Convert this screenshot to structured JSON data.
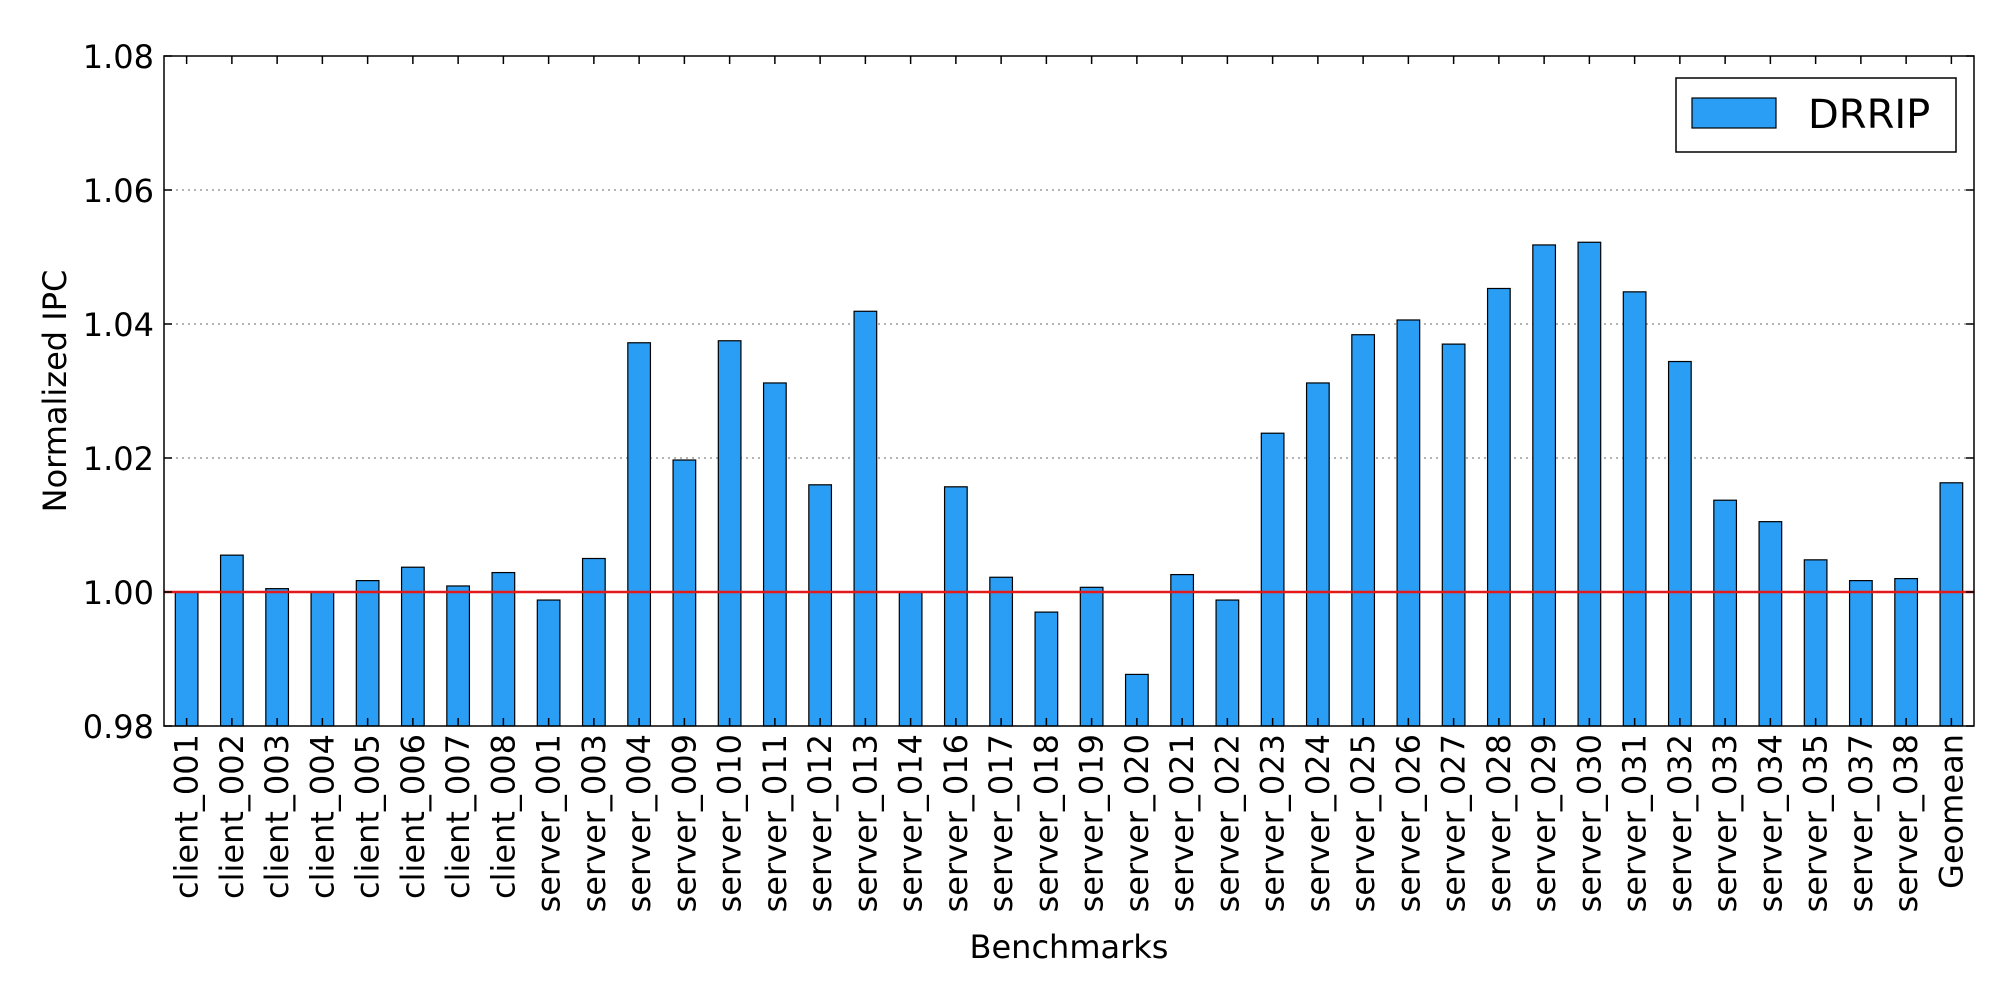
{
  "chart_data": {
    "type": "bar",
    "xlabel": "Benchmarks",
    "ylabel": "Normalized IPC",
    "ylim": [
      0.98,
      1.08
    ],
    "yticks": [
      "0.98",
      "1.00",
      "1.02",
      "1.04",
      "1.06",
      "1.08"
    ],
    "grid": "horizontal dotted",
    "legend_position": "top-right",
    "reference_line": 1.0,
    "categories": [
      "client_001",
      "client_002",
      "client_003",
      "client_004",
      "client_005",
      "client_006",
      "client_007",
      "client_008",
      "server_001",
      "server_003",
      "server_004",
      "server_009",
      "server_010",
      "server_011",
      "server_012",
      "server_013",
      "server_014",
      "server_016",
      "server_017",
      "server_018",
      "server_019",
      "server_020",
      "server_021",
      "server_022",
      "server_023",
      "server_024",
      "server_025",
      "server_026",
      "server_027",
      "server_028",
      "server_029",
      "server_030",
      "server_031",
      "server_032",
      "server_033",
      "server_034",
      "server_035",
      "server_037",
      "server_038",
      "Geomean"
    ],
    "series": [
      {
        "name": "DRRIP",
        "color": "#2a9df4",
        "values": [
          1.0,
          1.0055,
          1.0005,
          1.0,
          1.0017,
          1.0037,
          1.0009,
          1.0029,
          0.9988,
          1.005,
          1.0372,
          1.0197,
          1.0375,
          1.0312,
          1.016,
          1.0419,
          1.0,
          1.0157,
          1.0022,
          0.997,
          1.0007,
          0.9877,
          1.0026,
          0.9988,
          1.0237,
          1.0312,
          1.0384,
          1.0406,
          1.037,
          1.0453,
          1.0518,
          1.0522,
          1.0448,
          1.0344,
          1.0137,
          1.0105,
          1.0048,
          1.0017,
          1.002,
          1.0163
        ]
      }
    ],
    "colors": {
      "bar": "#2a9df4",
      "reference_line": "#e31a1c",
      "grid": "#888888"
    }
  }
}
